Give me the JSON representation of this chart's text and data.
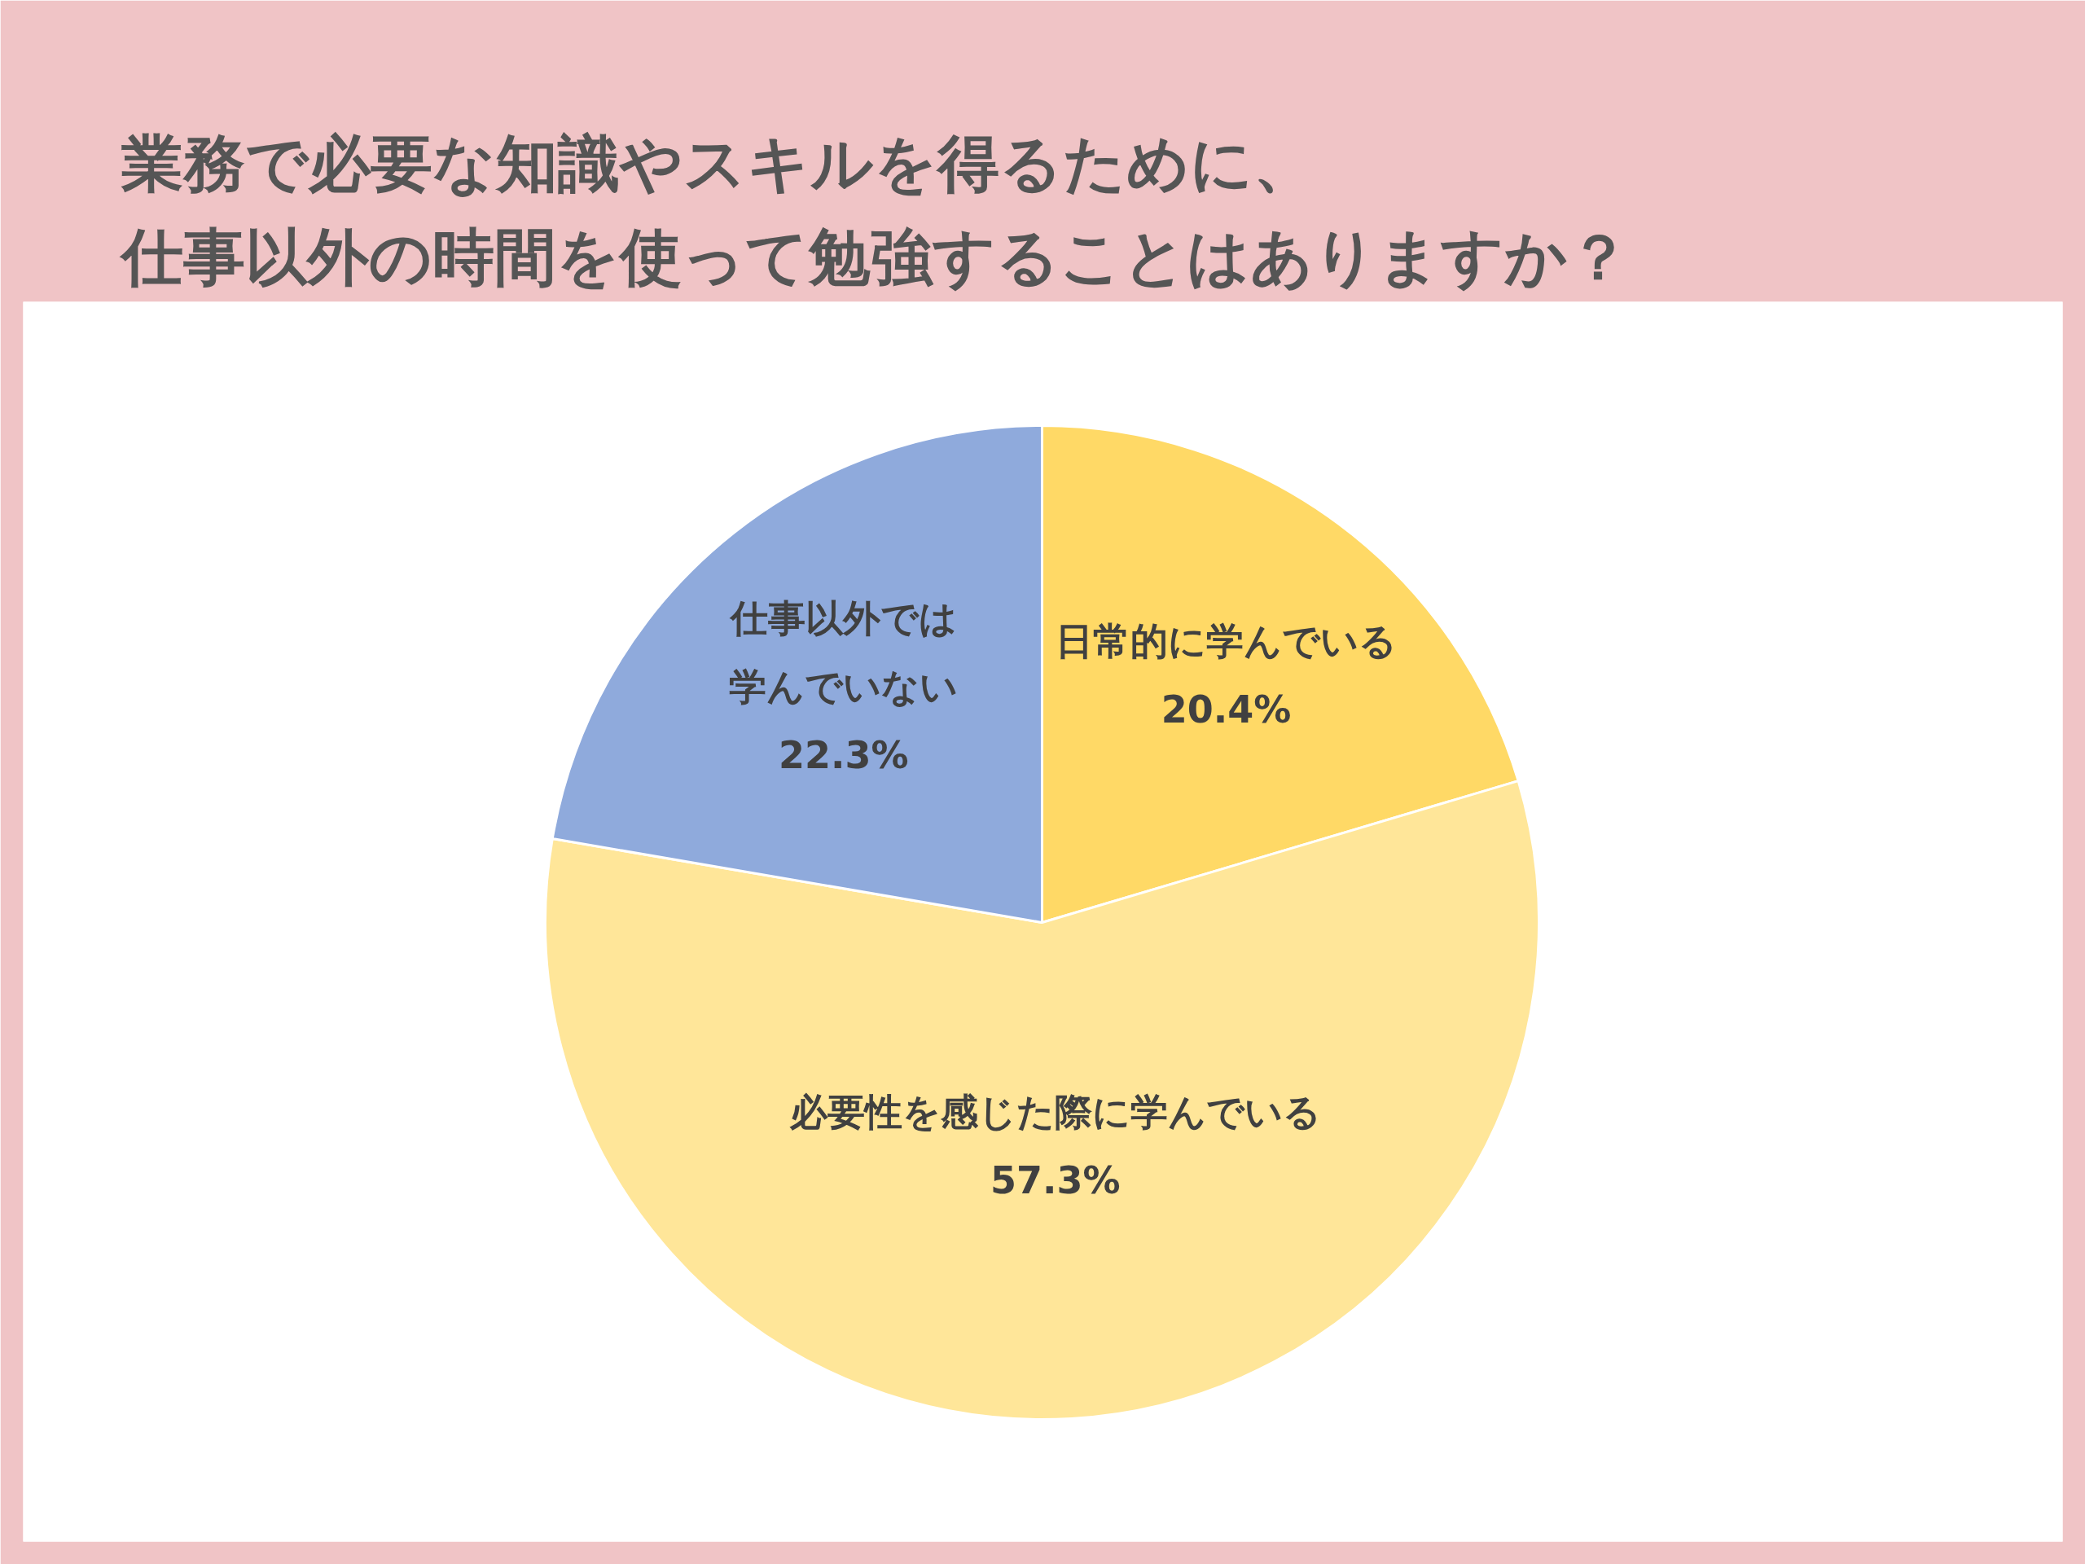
{
  "chart_data": {
    "type": "pie",
    "title": "業務で必要な知識やスキルを得るために、仕事以外の時間を使って勉強することはありますか？",
    "categories": [
      "日常的に学んでいる",
      "必要性を感じた際に学んでいる",
      "仕事以外では学んでいない"
    ],
    "values": [
      20.4,
      57.3,
      22.3
    ],
    "colors": [
      "#ffd966",
      "#ffe699",
      "#8faadc"
    ],
    "value_labels": [
      "20.4%",
      "57.3%",
      "22.3%"
    ]
  }
}
